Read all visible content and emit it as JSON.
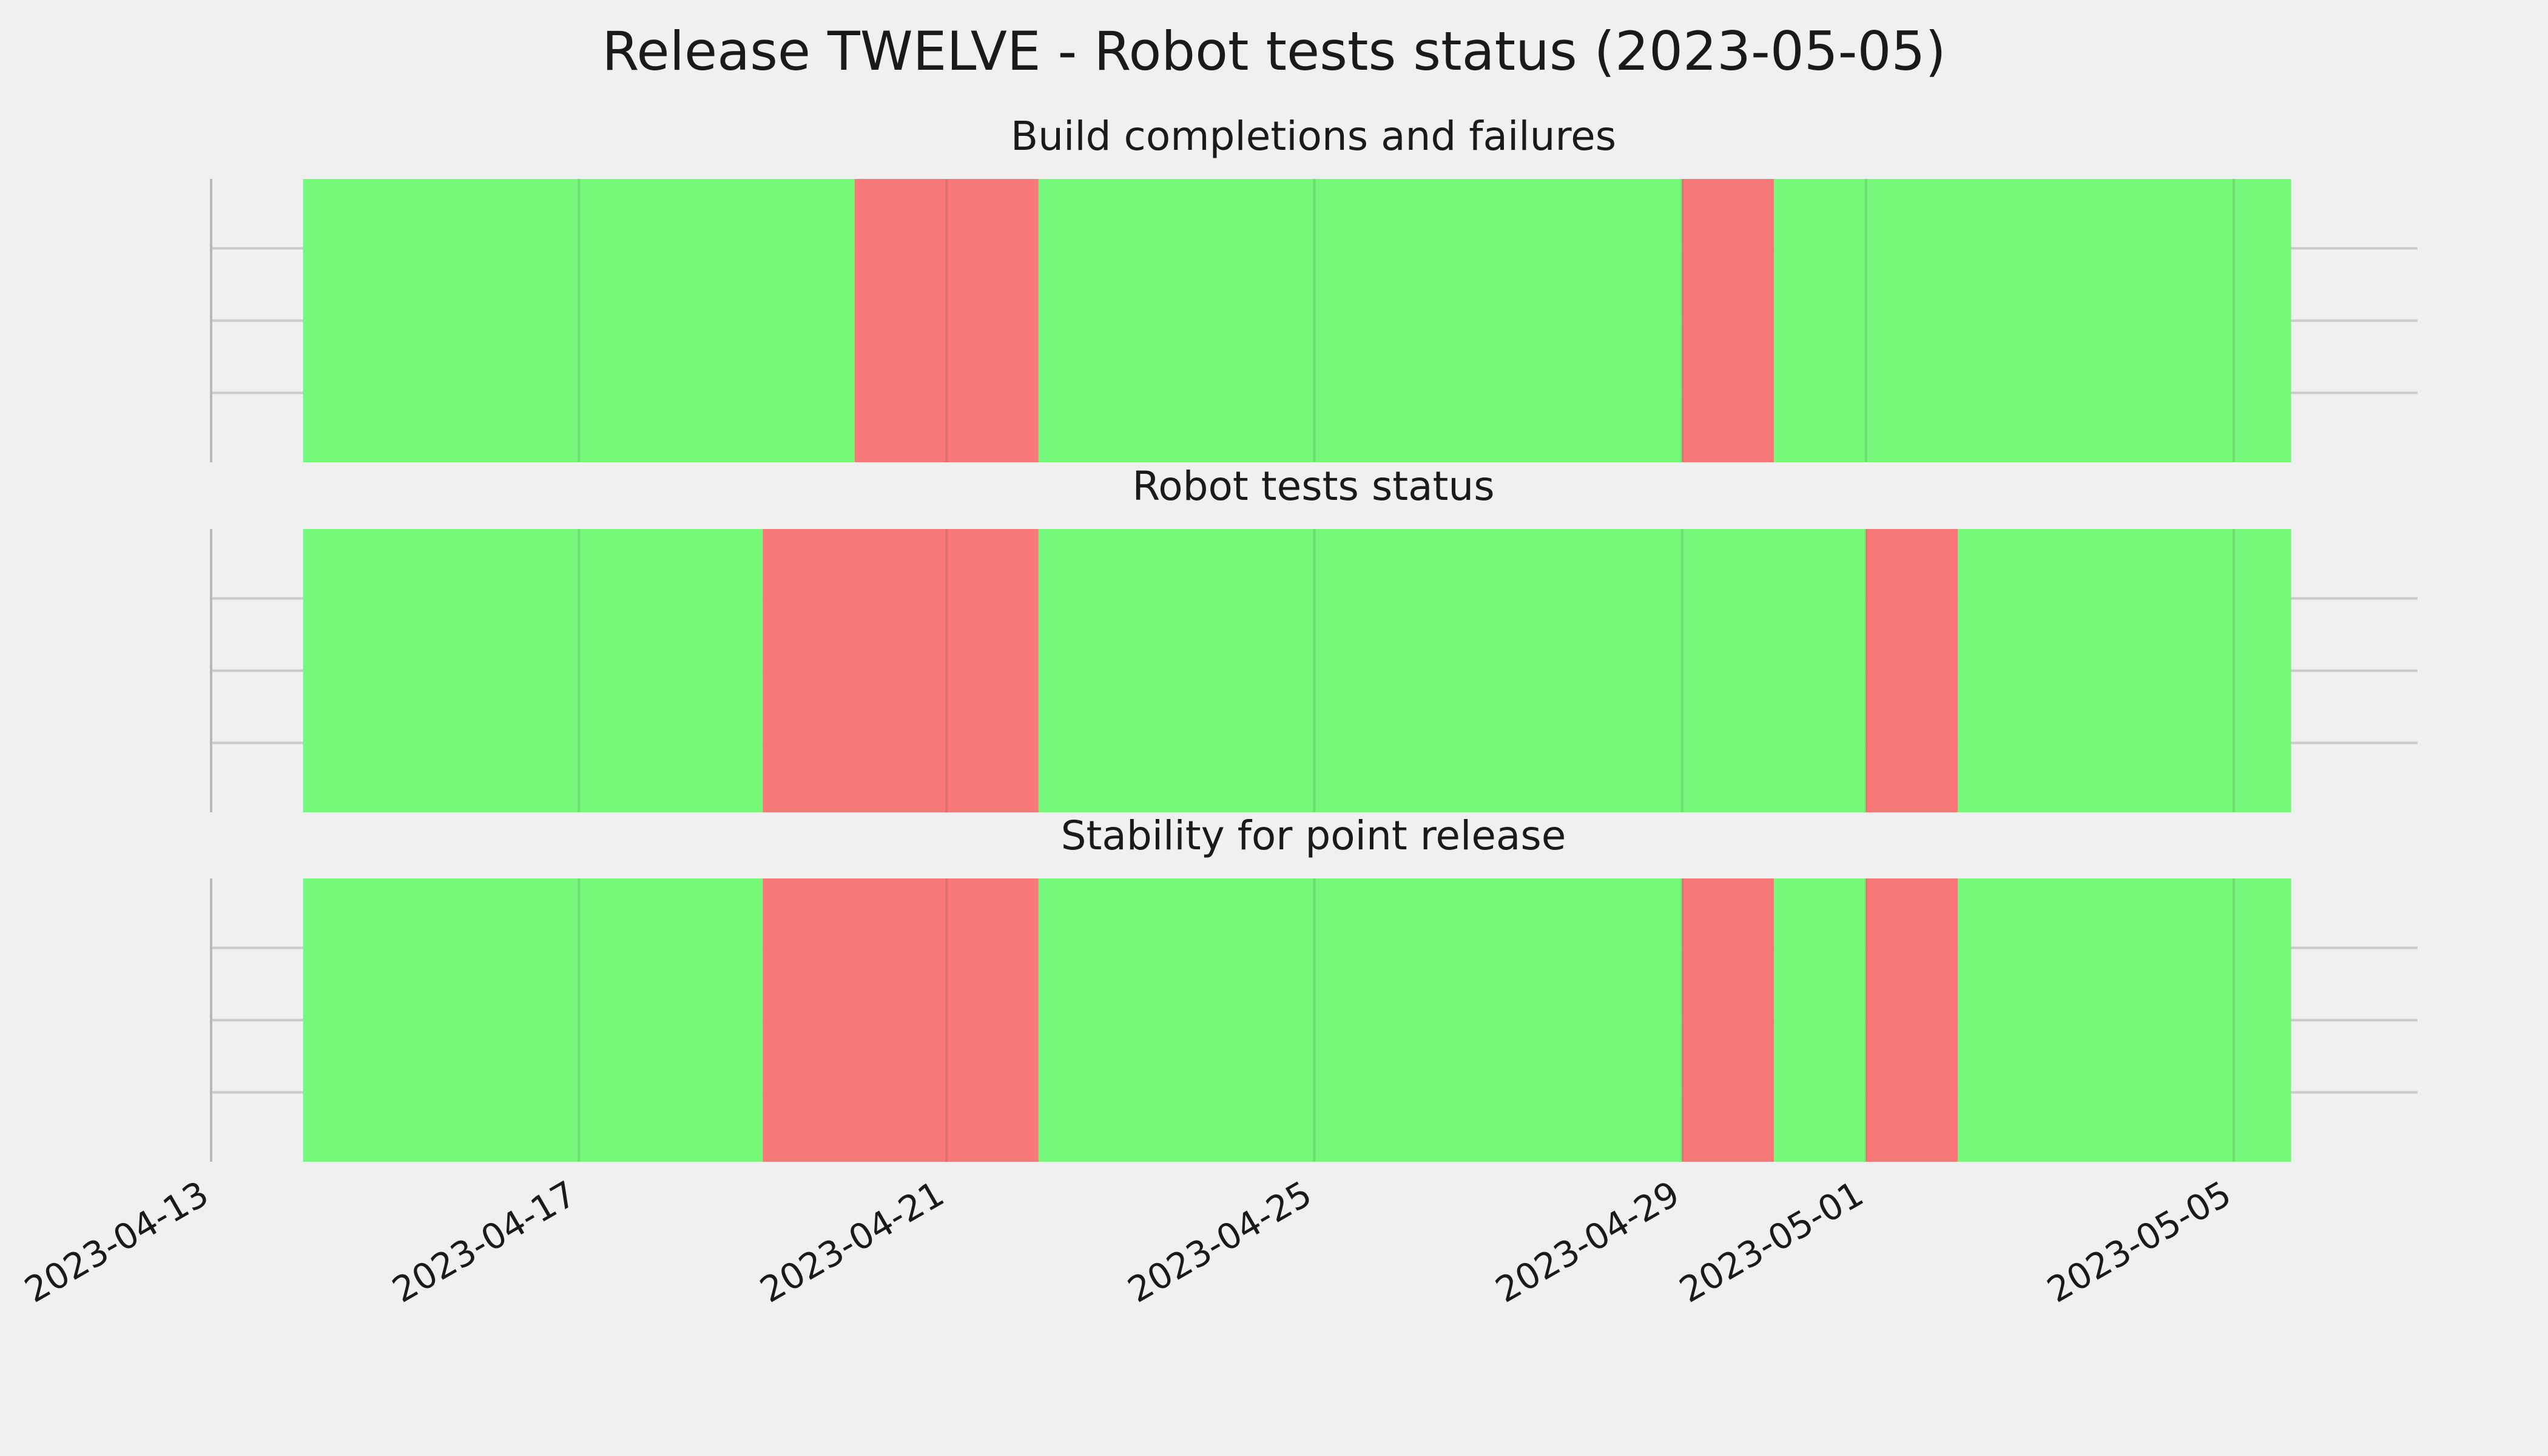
{
  "title": "Release TWELVE - Robot tests status (2023-05-05)",
  "colors": {
    "background": "#f0f0f0",
    "pass": "#76f87a",
    "fail": "#f87878",
    "grid": "#cbcbcb"
  },
  "chart_data": {
    "type": "timeline",
    "x_axis": {
      "type": "date",
      "range": [
        "2023-04-13",
        "2023-05-07"
      ],
      "ticks": [
        "2023-04-13",
        "2023-04-17",
        "2023-04-21",
        "2023-04-25",
        "2023-04-29",
        "2023-05-01",
        "2023-05-05"
      ]
    },
    "grid": true,
    "legend": "none",
    "panels": [
      {
        "title": "Build completions and failures",
        "segments": [
          {
            "start": "2023-04-14",
            "end": "2023-04-20",
            "status": "pass"
          },
          {
            "start": "2023-04-20",
            "end": "2023-04-22",
            "status": "fail"
          },
          {
            "start": "2023-04-22",
            "end": "2023-04-29",
            "status": "pass"
          },
          {
            "start": "2023-04-29",
            "end": "2023-04-30",
            "status": "fail"
          },
          {
            "start": "2023-04-30",
            "end": "2023-05-05 15:00",
            "status": "pass"
          }
        ]
      },
      {
        "title": "Robot tests status",
        "segments": [
          {
            "start": "2023-04-14",
            "end": "2023-04-19",
            "status": "pass"
          },
          {
            "start": "2023-04-19",
            "end": "2023-04-22",
            "status": "fail"
          },
          {
            "start": "2023-04-22",
            "end": "2023-05-01",
            "status": "pass"
          },
          {
            "start": "2023-05-01",
            "end": "2023-05-02",
            "status": "fail"
          },
          {
            "start": "2023-05-02",
            "end": "2023-05-05 15:00",
            "status": "pass"
          }
        ]
      },
      {
        "title": "Stability for point release",
        "segments": [
          {
            "start": "2023-04-14",
            "end": "2023-04-19",
            "status": "pass"
          },
          {
            "start": "2023-04-19",
            "end": "2023-04-22",
            "status": "fail"
          },
          {
            "start": "2023-04-22",
            "end": "2023-04-29",
            "status": "pass"
          },
          {
            "start": "2023-04-29",
            "end": "2023-04-30",
            "status": "fail"
          },
          {
            "start": "2023-04-30",
            "end": "2023-05-01",
            "status": "pass"
          },
          {
            "start": "2023-05-01",
            "end": "2023-05-02",
            "status": "fail"
          },
          {
            "start": "2023-05-02",
            "end": "2023-05-05 15:00",
            "status": "pass"
          }
        ]
      }
    ]
  }
}
